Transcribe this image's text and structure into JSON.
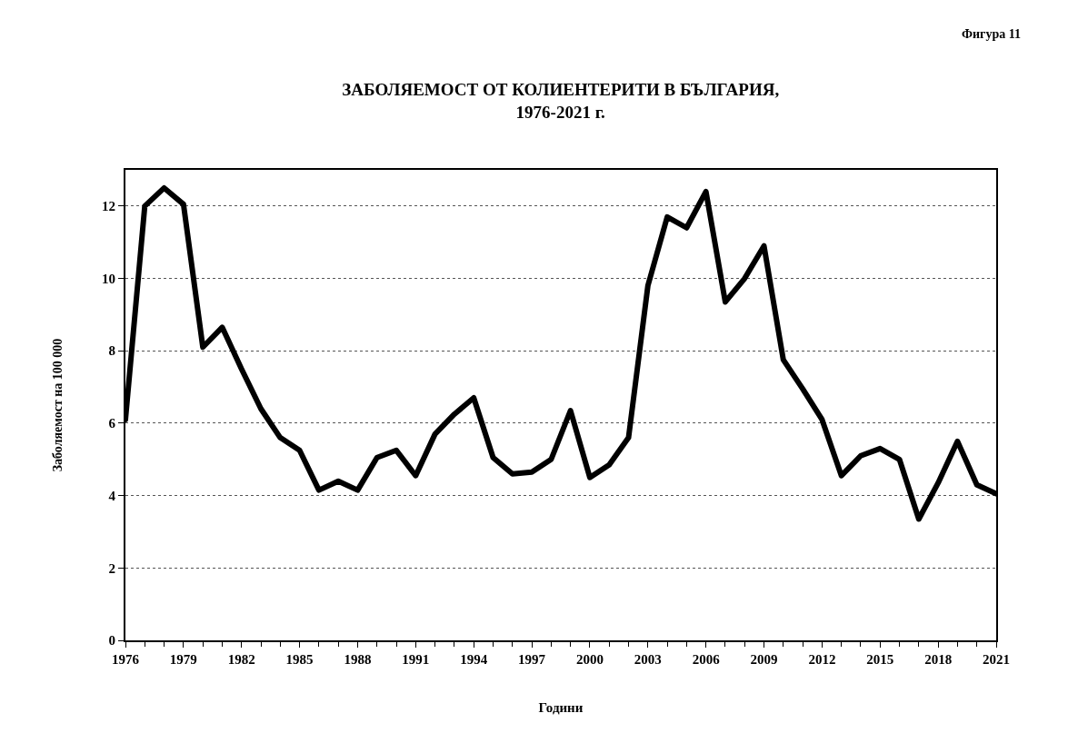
{
  "chart_data": {
    "type": "line",
    "title": "ЗАБОЛЯЕМОСТ ОТ КОЛИЕНТЕРИТИ В БЪЛГАРИЯ,\n1976-2021 г.",
    "xlabel": "Години",
    "ylabel": "Заболяемост на 100 000",
    "annotations": [
      "Фигура 11"
    ],
    "x": [
      1976,
      1977,
      1978,
      1979,
      1980,
      1981,
      1982,
      1983,
      1984,
      1985,
      1986,
      1987,
      1988,
      1989,
      1990,
      1991,
      1992,
      1993,
      1994,
      1995,
      1996,
      1997,
      1998,
      1999,
      2000,
      2001,
      2002,
      2003,
      2004,
      2005,
      2006,
      2007,
      2008,
      2009,
      2010,
      2011,
      2012,
      2013,
      2014,
      2015,
      2016,
      2017,
      2018,
      2019,
      2020,
      2021
    ],
    "series": [
      {
        "color": "#000000",
        "values": [
          6.1,
          12.0,
          12.5,
          12.05,
          8.1,
          8.65,
          7.5,
          6.4,
          5.6,
          5.25,
          4.15,
          4.4,
          4.15,
          5.05,
          5.25,
          4.55,
          5.7,
          6.25,
          6.7,
          5.05,
          4.6,
          4.65,
          5.0,
          6.35,
          4.5,
          4.85,
          5.6,
          9.8,
          11.7,
          11.4,
          12.4,
          9.35,
          10.0,
          10.9,
          7.75,
          6.95,
          6.1,
          4.55,
          5.1,
          5.3,
          5.0,
          3.35,
          4.35,
          5.5,
          4.3,
          4.05
        ]
      }
    ],
    "xlim": [
      1976,
      2021
    ],
    "xticks": [
      1976,
      1979,
      1982,
      1985,
      1988,
      1991,
      1994,
      1997,
      2000,
      2003,
      2006,
      2009,
      2012,
      2015,
      2018,
      2021
    ],
    "ylim": [
      0,
      13
    ],
    "yticks": [
      0,
      2,
      4,
      6,
      8,
      10,
      12
    ],
    "grid": "y",
    "marker": "none",
    "line_style": "solid"
  }
}
